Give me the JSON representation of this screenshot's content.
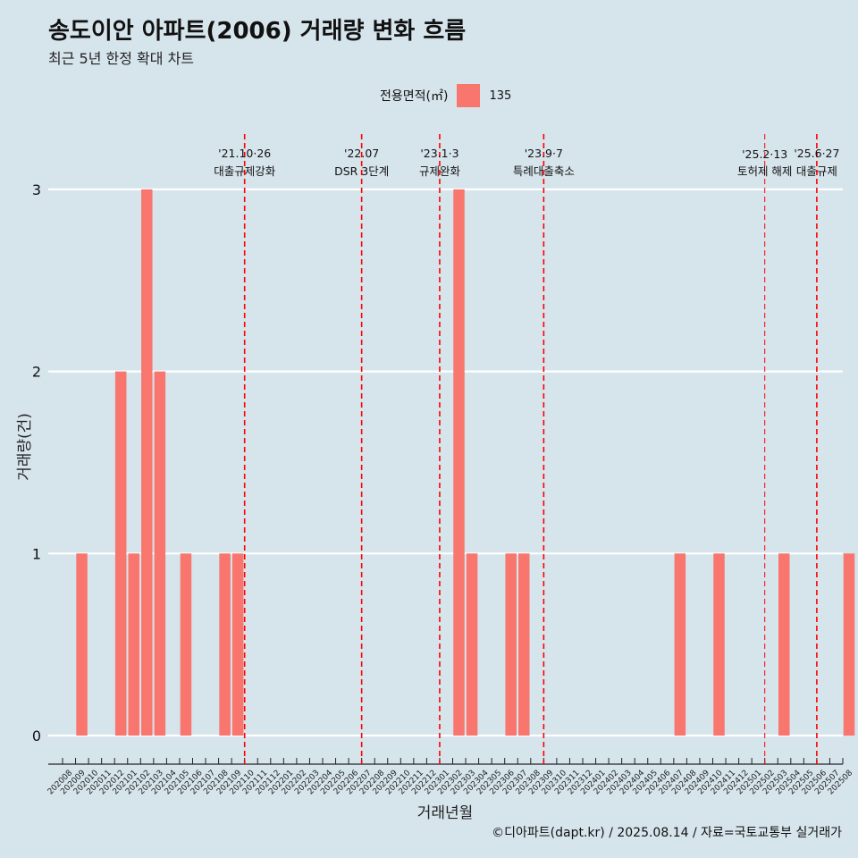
{
  "title": "송도이안 아파트(2006) 거래량 변화 흐름",
  "subtitle": "최근 5년 한정 확대 차트",
  "caption": "©디아파트(dapt.kr) / 2025.08.14 / 자료=국토교통부 실거래가",
  "legend": {
    "title": "전용면적(㎡)",
    "label": "135",
    "color": "#f8766d"
  },
  "chart_data": {
    "type": "bar",
    "xlabel": "거래년월",
    "ylabel": "거래량(건)",
    "ylim": [
      0,
      3
    ],
    "yticks": [
      0,
      1,
      2,
      3
    ],
    "grid": "horizontal",
    "legend_position": "top",
    "categories": [
      "202008",
      "202009",
      "202010",
      "202011",
      "202012",
      "202101",
      "202102",
      "202103",
      "202104",
      "202105",
      "202106",
      "202107",
      "202108",
      "202109",
      "202110",
      "202111",
      "202112",
      "202201",
      "202202",
      "202203",
      "202204",
      "202205",
      "202206",
      "202207",
      "202208",
      "202209",
      "202210",
      "202211",
      "202212",
      "202301",
      "202302",
      "202303",
      "202304",
      "202305",
      "202306",
      "202307",
      "202308",
      "202309",
      "202310",
      "202311",
      "202312",
      "202401",
      "202402",
      "202403",
      "202404",
      "202405",
      "202406",
      "202407",
      "202408",
      "202409",
      "202410",
      "202411",
      "202412",
      "202501",
      "202502",
      "202503",
      "202504",
      "202505",
      "202506",
      "202507",
      "202508"
    ],
    "series": [
      {
        "name": "135",
        "color": "#f8766d",
        "values": [
          0,
          1,
          0,
          0,
          2,
          1,
          3,
          2,
          0,
          1,
          0,
          0,
          1,
          1,
          0,
          0,
          0,
          0,
          0,
          0,
          0,
          0,
          0,
          0,
          0,
          0,
          0,
          0,
          0,
          0,
          3,
          1,
          0,
          0,
          1,
          1,
          0,
          0,
          0,
          0,
          0,
          0,
          0,
          0,
          0,
          0,
          0,
          1,
          0,
          0,
          1,
          0,
          0,
          0,
          0,
          1,
          0,
          0,
          0,
          0,
          1
        ]
      }
    ],
    "annotations": [
      {
        "x": "202110",
        "date": "'21.10·26",
        "label": "대출규제강화",
        "color": "#ff0000"
      },
      {
        "x": "202207",
        "date": "'22.07",
        "label": "DSR 3단계",
        "color": "#ff0000"
      },
      {
        "x": "202301",
        "date": "'23.1·3",
        "label": "규제완화",
        "color": "#ff0000"
      },
      {
        "x": "202309",
        "date": "'23.9·7",
        "label": "특례대출축소",
        "color": "#ff0000"
      },
      {
        "x": "202502",
        "date": "'25.2·13",
        "label": "토허제 해제",
        "color": "#ff0000"
      },
      {
        "x": "202506",
        "date": "'25.6·27",
        "label": "대출규제",
        "color": "#ff0000"
      }
    ]
  }
}
